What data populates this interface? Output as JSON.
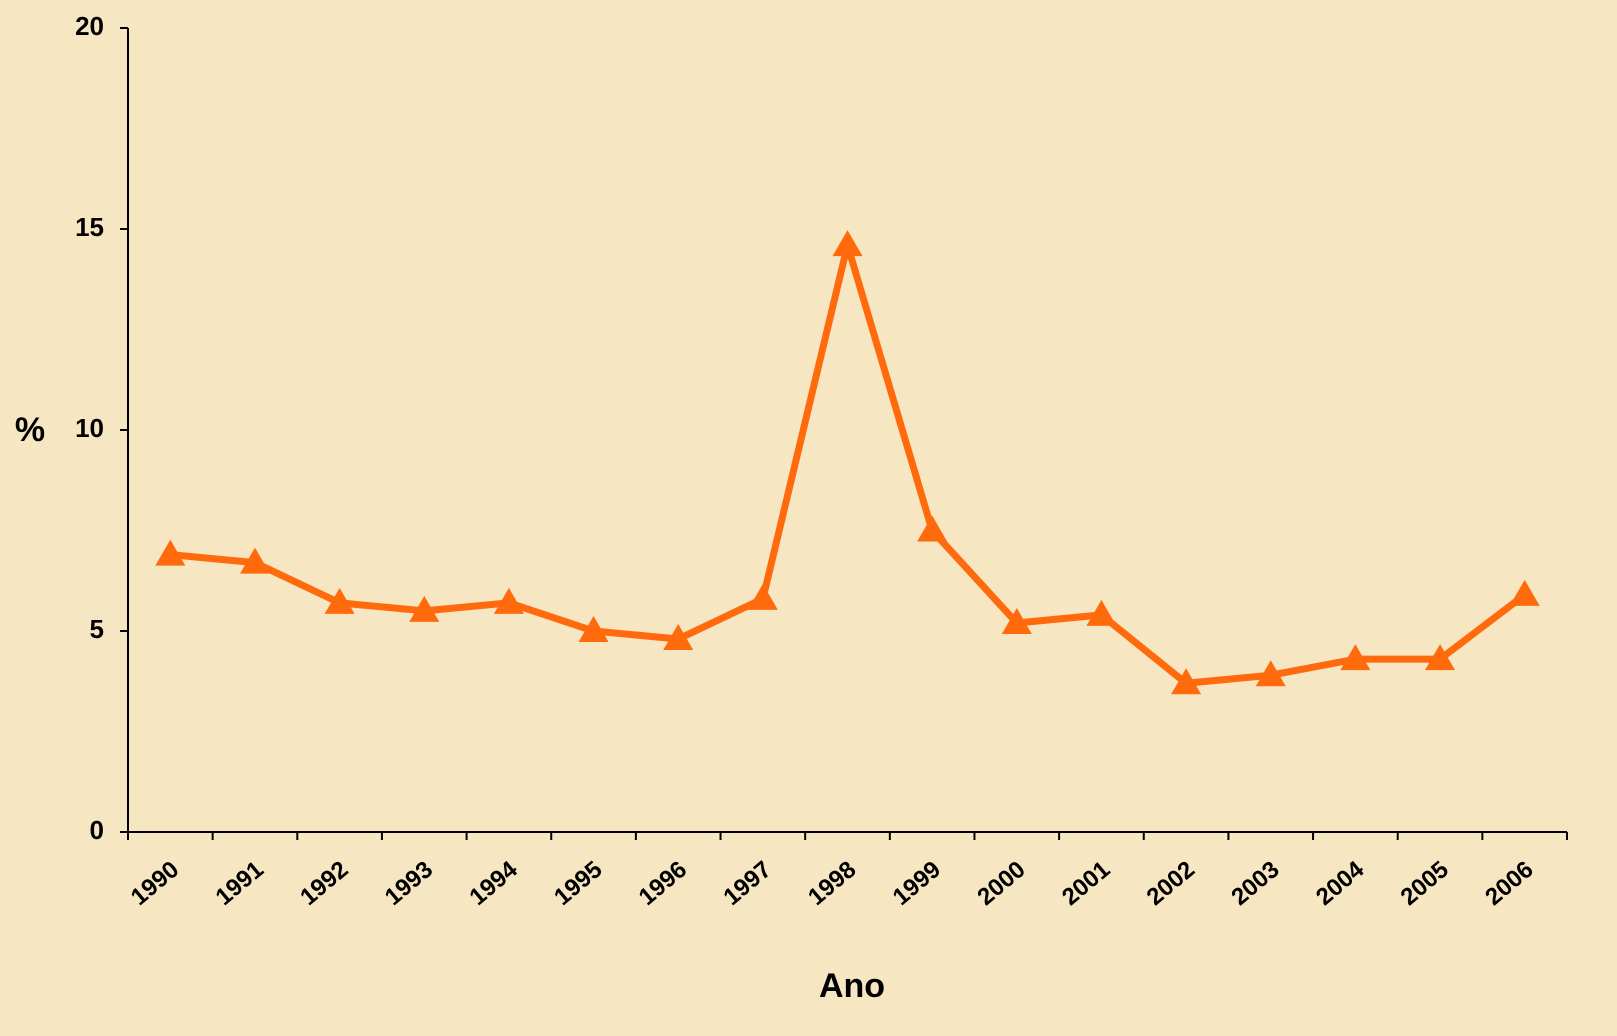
{
  "chart_data": {
    "type": "line",
    "x_label": "Ano",
    "y_label": "%",
    "categories": [
      "1990",
      "1991",
      "1992",
      "1993",
      "1994",
      "1995",
      "1996",
      "1997",
      "1998",
      "1999",
      "2000",
      "2001",
      "2002",
      "2003",
      "2004",
      "2005",
      "2006"
    ],
    "series": [
      {
        "color": "#ff6a0c",
        "values": [
          6.9,
          6.7,
          5.7,
          5.5,
          5.7,
          5.0,
          4.8,
          5.8,
          14.6,
          7.5,
          5.2,
          5.4,
          3.7,
          3.9,
          4.3,
          4.3,
          5.9
        ]
      }
    ],
    "ylim": [
      0,
      20
    ],
    "yticks": [
      0,
      5,
      10,
      15,
      20
    ],
    "grid": false
  }
}
